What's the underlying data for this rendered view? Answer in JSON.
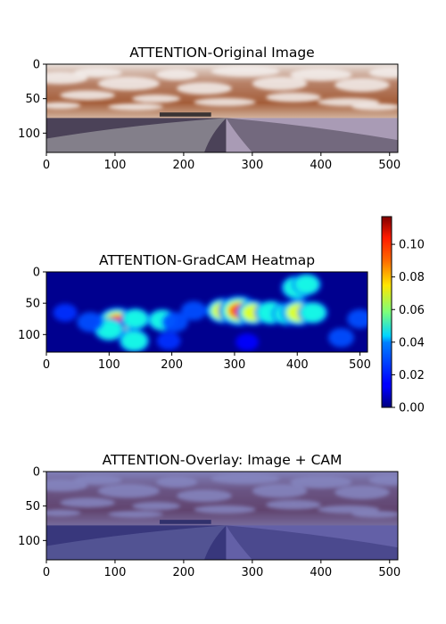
{
  "chart_data": [
    {
      "type": "image",
      "title": "ATTENTION-Original Image",
      "xticks": [
        0,
        100,
        200,
        300,
        400,
        500
      ],
      "yticks": [
        0,
        50,
        100
      ],
      "xlim": [
        0,
        512
      ],
      "ylim": [
        0,
        128
      ],
      "scene": {
        "sky_colors": [
          "#e9e1dc",
          "#b78066",
          "#a45d39",
          "#d6b9a5"
        ],
        "field_color": "#4b4258",
        "wheat_color": "#a99bb5",
        "road_color": "#8d8a93"
      }
    },
    {
      "type": "heatmap",
      "title": "ATTENTION-GradCAM Heatmap",
      "xticks": [
        0,
        100,
        200,
        300,
        400,
        500
      ],
      "yticks": [
        0,
        50,
        100
      ],
      "xlim": [
        0,
        512
      ],
      "ylim": [
        0,
        128
      ],
      "colormap": "jet",
      "colorbar": {
        "min": 0.0,
        "max": 0.117,
        "ticks": [
          "0.00",
          "0.02",
          "0.04",
          "0.06",
          "0.08",
          "0.10"
        ],
        "tick_values": [
          0.0,
          0.02,
          0.04,
          0.06,
          0.08,
          0.1
        ],
        "placement": "right"
      },
      "hotspots": [
        {
          "x": 113,
          "y": 80,
          "value": 0.11
        },
        {
          "x": 100,
          "y": 92,
          "value": 0.06
        },
        {
          "x": 140,
          "y": 110,
          "value": 0.06
        },
        {
          "x": 142,
          "y": 75,
          "value": 0.05
        },
        {
          "x": 70,
          "y": 80,
          "value": 0.035
        },
        {
          "x": 185,
          "y": 77,
          "value": 0.055
        },
        {
          "x": 205,
          "y": 80,
          "value": 0.035
        },
        {
          "x": 235,
          "y": 62,
          "value": 0.03
        },
        {
          "x": 30,
          "y": 65,
          "value": 0.02
        },
        {
          "x": 282,
          "y": 62,
          "value": 0.08
        },
        {
          "x": 307,
          "y": 62,
          "value": 0.115
        },
        {
          "x": 330,
          "y": 65,
          "value": 0.075
        },
        {
          "x": 358,
          "y": 65,
          "value": 0.07
        },
        {
          "x": 385,
          "y": 67,
          "value": 0.065
        },
        {
          "x": 402,
          "y": 65,
          "value": 0.085
        },
        {
          "x": 425,
          "y": 65,
          "value": 0.055
        },
        {
          "x": 400,
          "y": 25,
          "value": 0.07
        },
        {
          "x": 415,
          "y": 20,
          "value": 0.05
        },
        {
          "x": 470,
          "y": 105,
          "value": 0.03
        },
        {
          "x": 500,
          "y": 75,
          "value": 0.03
        },
        {
          "x": 195,
          "y": 110,
          "value": 0.02
        },
        {
          "x": 320,
          "y": 112,
          "value": 0.015
        }
      ]
    },
    {
      "type": "image",
      "title": "ATTENTION-Overlay: Image + CAM",
      "xticks": [
        0,
        100,
        200,
        300,
        400,
        500
      ],
      "yticks": [
        0,
        50,
        100
      ],
      "xlim": [
        0,
        512
      ],
      "ylim": [
        0,
        128
      ],
      "overlay_tint": "#2a2f9a"
    }
  ]
}
